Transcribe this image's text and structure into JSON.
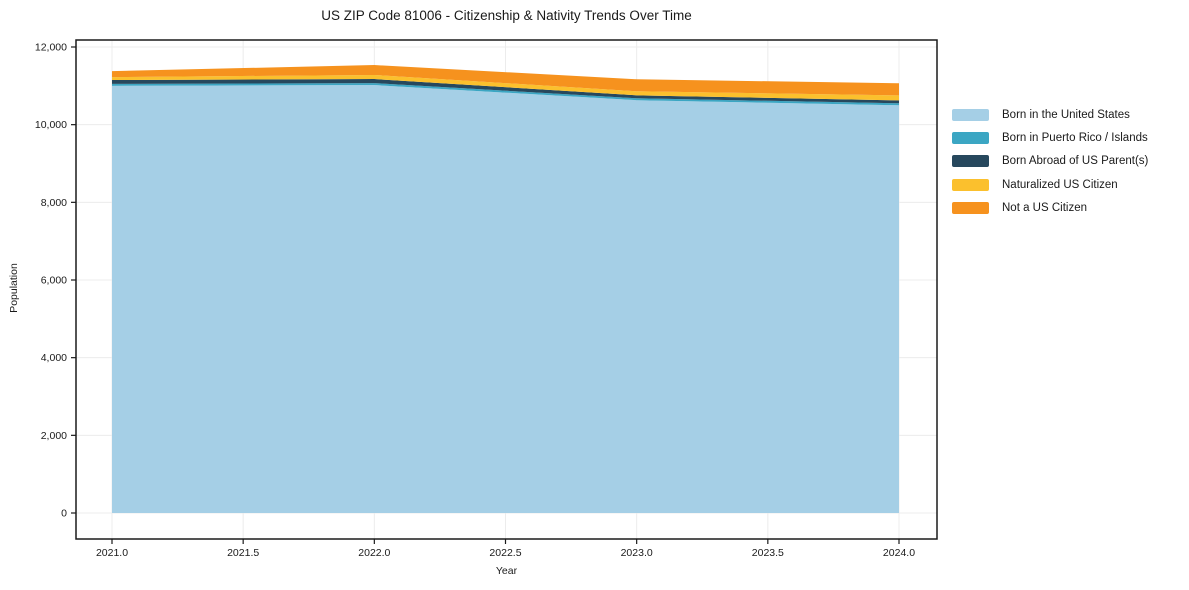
{
  "title": "US ZIP Code 81006 - Citizenship & Nativity Trends Over Time",
  "chart_data": {
    "type": "area",
    "stacked": true,
    "title": "US ZIP Code 81006 - Citizenship & Nativity Trends Over Time",
    "xlabel": "Year",
    "ylabel": "Population",
    "x": [
      2021,
      2022,
      2023,
      2024
    ],
    "series": [
      {
        "name": "Born in the United States",
        "color": "#a5cfe6",
        "values": [
          11000,
          11020,
          10630,
          10500
        ]
      },
      {
        "name": "Born in Puerto Rico / Islands",
        "color": "#3ba6c3",
        "values": [
          50,
          50,
          50,
          50
        ]
      },
      {
        "name": "Born Abroad of US Parent(s)",
        "color": "#27485d",
        "values": [
          100,
          105,
          75,
          75
        ]
      },
      {
        "name": "Naturalized US Citizen",
        "color": "#fbc02d",
        "values": [
          75,
          105,
          105,
          130
        ]
      },
      {
        "name": "Not a US Citizen",
        "color": "#f6921e",
        "values": [
          155,
          255,
          310,
          310
        ]
      }
    ],
    "totals": [
      11380,
      11535,
      11170,
      11065
    ],
    "xlim": [
      2020.86,
      2024.14
    ],
    "ylim": [
      0,
      12000
    ],
    "xticks": {
      "values": [
        2021.0,
        2021.5,
        2022.0,
        2022.5,
        2023.0,
        2023.5,
        2024.0
      ],
      "labels": [
        "2021.0",
        "2021.5",
        "2022.0",
        "2022.5",
        "2023.0",
        "2023.5",
        "2024.0"
      ]
    },
    "yticks": {
      "values": [
        0,
        2000,
        4000,
        6000,
        8000,
        10000,
        12000
      ],
      "labels": [
        "0",
        "2,000",
        "4,000",
        "6,000",
        "8,000",
        "10,000",
        "12,000"
      ]
    },
    "grid": true,
    "legend_position": "right"
  },
  "colors": {
    "background": "#ffffff",
    "grid": "#ececec",
    "spine": "#1a1a1a",
    "text": "#1a1a1a"
  }
}
